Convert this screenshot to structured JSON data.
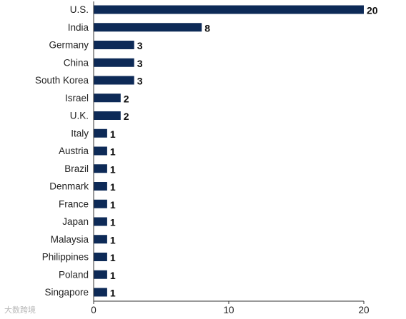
{
  "chart_data": {
    "type": "bar",
    "orientation": "horizontal",
    "categories": [
      "U.S.",
      "India",
      "Germany",
      "China",
      "South Korea",
      "Israel",
      "U.K.",
      "Italy",
      "Austria",
      "Brazil",
      "Denmark",
      "France",
      "Japan",
      "Malaysia",
      "Philippines",
      "Poland",
      "Singapore"
    ],
    "values": [
      20,
      8,
      3,
      3,
      3,
      2,
      2,
      1,
      1,
      1,
      1,
      1,
      1,
      1,
      1,
      1,
      1
    ],
    "title": "",
    "xlabel": "",
    "ylabel": "",
    "xlim": [
      0,
      20
    ],
    "xticks": [
      0,
      10,
      20
    ],
    "grid": false,
    "data_labels": true,
    "bar_color": "#0d2a57"
  },
  "watermark": "大数跨境"
}
